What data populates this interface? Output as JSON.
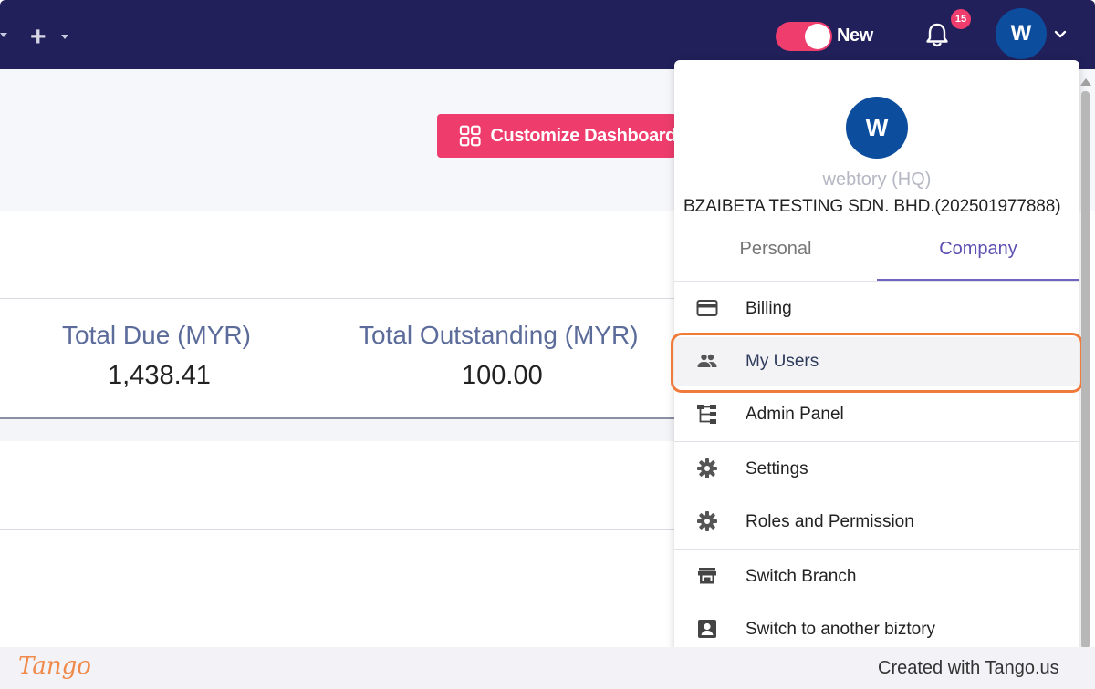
{
  "topbar": {
    "add_symbol": "+",
    "toggle_label": "New",
    "toggle_on": true,
    "notifications_count": "15",
    "avatar_initial": "W"
  },
  "dashboard": {
    "customize_label": "Customize Dashboard",
    "stats": [
      {
        "label": "Total Due (MYR)",
        "value": "1,438.41"
      },
      {
        "label": "Total Outstanding (MYR)",
        "value": "100.00"
      }
    ]
  },
  "dropdown": {
    "avatar_initial": "W",
    "org_name": "webtory (HQ)",
    "company_name": "BZAIBETA TESTING SDN. BHD.(202501977888)",
    "tabs": [
      {
        "label": "Personal",
        "selected": false
      },
      {
        "label": "Company",
        "selected": true
      }
    ],
    "items": [
      {
        "label": "Billing",
        "icon": "credit-card-icon"
      },
      {
        "label": "My Users",
        "icon": "users-icon",
        "highlighted": true
      },
      {
        "label": "Admin Panel",
        "icon": "hierarchy-icon"
      },
      {
        "label": "Settings",
        "icon": "gear-icon"
      },
      {
        "label": "Roles and Permission",
        "icon": "gear-icon"
      },
      {
        "label": "Switch Branch",
        "icon": "store-icon"
      },
      {
        "label": "Switch to another biztory",
        "icon": "account-box-icon"
      }
    ]
  },
  "footer": {
    "brand": "Tango",
    "credit": "Created with Tango.us"
  },
  "colors": {
    "topbar": "#22205a",
    "accent": "#ee3d6d",
    "avatar": "#0d4d9e",
    "tab_active": "#5b4fb0",
    "highlight": "#f07a3a"
  }
}
